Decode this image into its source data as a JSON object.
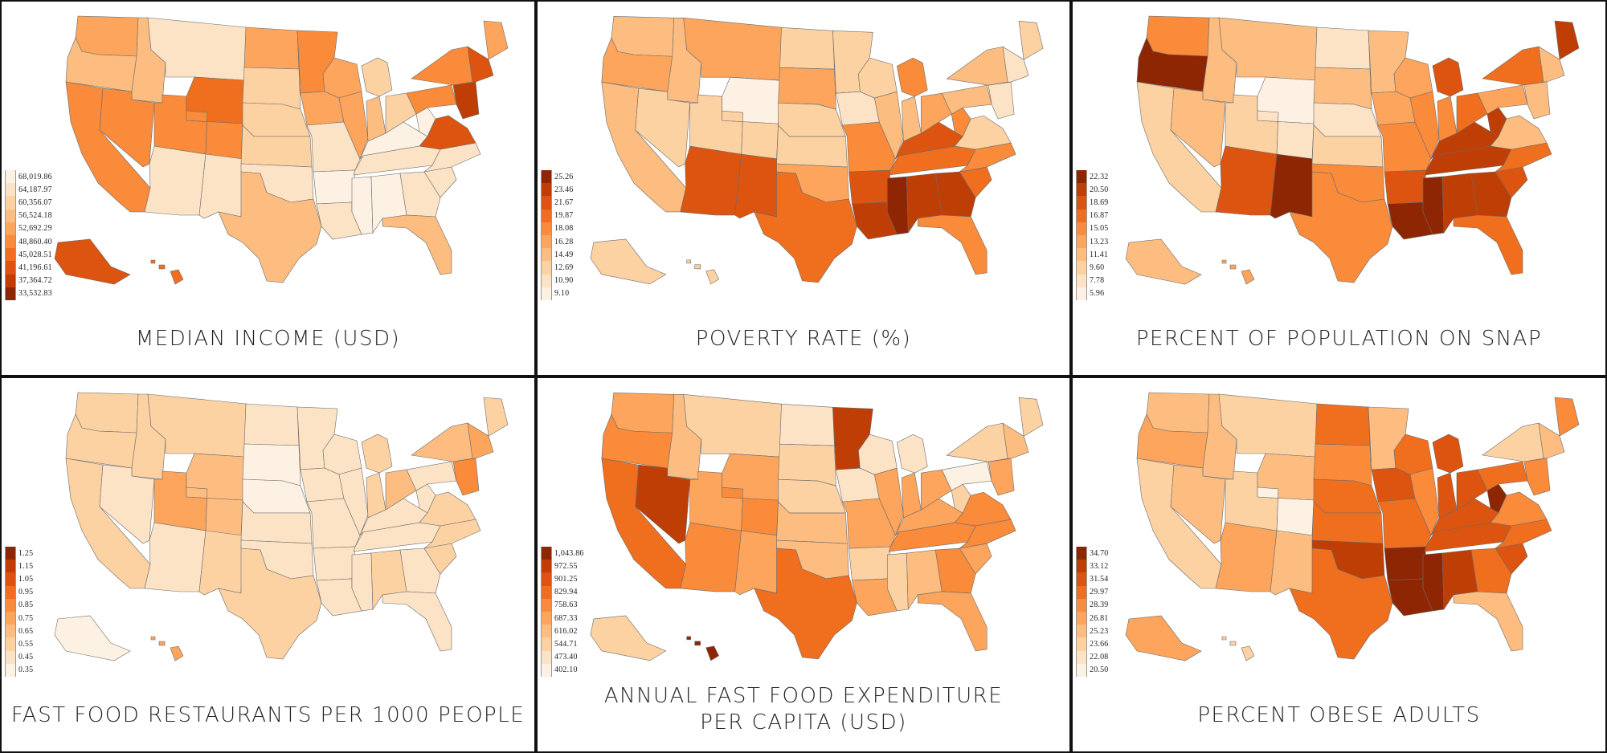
{
  "panels": [
    {
      "id": "median-income",
      "title_lines": [
        "MEDIAN INCOME (USD)"
      ],
      "legend": [
        "68,019.86",
        "64,187.97",
        "60,356.07",
        "56,524.18",
        "52,692.29",
        "48,860.40",
        "45,028.51",
        "41,196.61",
        "37,364.72",
        "33,532.83"
      ],
      "palette": [
        "#fdf1e3",
        "#fde3c5",
        "#fdd2a3",
        "#fdbd80",
        "#fda55c",
        "#f98b3b",
        "#ef6f1f",
        "#dc540f",
        "#bf3e06",
        "#8f2603"
      ],
      "states": {
        "WA": 4,
        "OR": 3,
        "CA": 5,
        "ID": 3,
        "NV": 5,
        "AZ": 1,
        "UT": 5,
        "MT": 1,
        "WY": 6,
        "CO": 5,
        "NM": 1,
        "ND": 4,
        "SD": 2,
        "NE": 2,
        "KS": 2,
        "OK": 1,
        "TX": 3,
        "MN": 5,
        "IA": 4,
        "MO": 1,
        "AR": 0,
        "LA": 1,
        "WI": 4,
        "IL": 4,
        "MS": 0,
        "MI": 2,
        "IN": 3,
        "KY": 0,
        "TN": 1,
        "AL": 0,
        "OH": 2,
        "GA": 1,
        "FL": 3,
        "SC": 1,
        "NC": 1,
        "WV": 0,
        "VA": 7,
        "PA": 5,
        "NY": 5,
        "ME": 4,
        "NE_": 7,
        "MID": 8,
        "AK": 7,
        "HI": 6
      }
    },
    {
      "id": "poverty-rate",
      "title_lines": [
        "POVERTY RATE (%)"
      ],
      "legend": [
        "25.26",
        "23.46",
        "21.67",
        "19.87",
        "18.08",
        "16.28",
        "14.49",
        "12.69",
        "10.90",
        "9.10"
      ],
      "palette": [
        "#8f2603",
        "#bf3e06",
        "#dc540f",
        "#ef6f1f",
        "#f98b3b",
        "#fda55c",
        "#fdbd80",
        "#fdd2a3",
        "#fde3c5",
        "#fdf1e3"
      ],
      "states": {
        "WA": 6,
        "OR": 5,
        "CA": 6,
        "ID": 6,
        "NV": 7,
        "AZ": 2,
        "UT": 7,
        "MT": 5,
        "WY": 9,
        "CO": 7,
        "NM": 2,
        "ND": 7,
        "SD": 5,
        "NE": 7,
        "KS": 7,
        "OK": 5,
        "TX": 3,
        "MN": 7,
        "IA": 8,
        "MO": 4,
        "AR": 2,
        "LA": 1,
        "WI": 7,
        "IL": 6,
        "MS": 0,
        "MI": 4,
        "IN": 6,
        "KY": 2,
        "TN": 3,
        "AL": 1,
        "OH": 5,
        "GA": 1,
        "FL": 4,
        "SC": 3,
        "NC": 4,
        "WV": 4,
        "VA": 7,
        "PA": 6,
        "NY": 6,
        "ME": 7,
        "NE_": 8,
        "MID": 8,
        "AK": 7,
        "HI": 7
      }
    },
    {
      "id": "snap",
      "title_lines": [
        "PERCENT OF POPULATION ON SNAP"
      ],
      "legend": [
        "22.32",
        "20.50",
        "18.69",
        "16.87",
        "15.05",
        "13.23",
        "11.41",
        "9.60",
        "7.78",
        "5.96"
      ],
      "palette": [
        "#8f2603",
        "#bf3e06",
        "#dc540f",
        "#ef6f1f",
        "#f98b3b",
        "#fda55c",
        "#fdbd80",
        "#fdd2a3",
        "#fde3c5",
        "#fdf1e3"
      ],
      "states": {
        "WA": 4,
        "OR": 0,
        "CA": 7,
        "ID": 6,
        "NV": 6,
        "AZ": 2,
        "UT": 7,
        "MT": 6,
        "WY": 9,
        "CO": 8,
        "NM": 0,
        "ND": 8,
        "SD": 6,
        "NE": 8,
        "KS": 7,
        "OK": 4,
        "TX": 4,
        "MN": 6,
        "IA": 5,
        "MO": 4,
        "AR": 2,
        "LA": 0,
        "WI": 5,
        "IL": 4,
        "MS": 0,
        "MI": 2,
        "IN": 4,
        "KY": 1,
        "TN": 1,
        "AL": 1,
        "OH": 3,
        "GA": 1,
        "FL": 3,
        "SC": 2,
        "NC": 3,
        "WV": 1,
        "VA": 6,
        "PA": 5,
        "NY": 3,
        "ME": 1,
        "NE_": 6,
        "MID": 6,
        "AK": 6,
        "HI": 5
      }
    },
    {
      "id": "fast-food-restaurants",
      "title_lines": [
        "FAST FOOD RESTAURANTS PER 1000 PEOPLE"
      ],
      "legend": [
        "1.25",
        "1.15",
        "1.05",
        "0.95",
        "0.85",
        "0.75",
        "0.65",
        "0.55",
        "0.45",
        "0.35"
      ],
      "palette": [
        "#8f2603",
        "#bf3e06",
        "#dc540f",
        "#ef6f1f",
        "#f98b3b",
        "#fda55c",
        "#fdbd80",
        "#fdd2a3",
        "#fde3c5",
        "#fdf1e3"
      ],
      "states": {
        "WA": 7,
        "OR": 7,
        "CA": 7,
        "ID": 7,
        "NV": 8,
        "AZ": 8,
        "UT": 5,
        "MT": 7,
        "WY": 6,
        "CO": 6,
        "NM": 7,
        "ND": 8,
        "SD": 9,
        "NE": 9,
        "KS": 8,
        "OK": 8,
        "TX": 7,
        "MN": 8,
        "IA": 8,
        "MO": 8,
        "AR": 8,
        "LA": 8,
        "WI": 8,
        "IL": 8,
        "MS": 8,
        "MI": 7,
        "IN": 7,
        "KY": 8,
        "TN": 8,
        "AL": 7,
        "OH": 6,
        "GA": 8,
        "FL": 8,
        "SC": 7,
        "NC": 7,
        "WV": 8,
        "VA": 7,
        "PA": 8,
        "NY": 6,
        "ME": 7,
        "NE_": 5,
        "MID": 4,
        "AK": 9,
        "HI": 5
      }
    },
    {
      "id": "fast-food-expenditure",
      "title_lines": [
        "ANNUAL FAST FOOD EXPENDITURE",
        "PER CAPITA (USD)"
      ],
      "legend": [
        "1,043.86",
        "972.55",
        "901.25",
        "829.94",
        "758.63",
        "687.33",
        "616.02",
        "544.71",
        "473.40",
        "402.10"
      ],
      "palette": [
        "#8f2603",
        "#bf3e06",
        "#dc540f",
        "#ef6f1f",
        "#f98b3b",
        "#fda55c",
        "#fdbd80",
        "#fdd2a3",
        "#fde3c5",
        "#fdf1e3"
      ],
      "states": {
        "WA": 5,
        "OR": 4,
        "CA": 3,
        "ID": 6,
        "NV": 1,
        "AZ": 4,
        "UT": 5,
        "MT": 7,
        "WY": 5,
        "CO": 4,
        "NM": 5,
        "ND": 8,
        "SD": 7,
        "NE": 7,
        "KS": 6,
        "OK": 6,
        "TX": 3,
        "MN": 1,
        "IA": 8,
        "MO": 5,
        "AR": 7,
        "LA": 5,
        "WI": 8,
        "IL": 5,
        "MS": 7,
        "MI": 8,
        "IN": 5,
        "KY": 5,
        "TN": 4,
        "AL": 6,
        "OH": 5,
        "GA": 4,
        "FL": 5,
        "SC": 5,
        "NC": 4,
        "WV": 7,
        "VA": 4,
        "PA": 9,
        "NY": 7,
        "ME": 7,
        "NE_": 6,
        "MID": 5,
        "AK": 7,
        "HI": 0
      }
    },
    {
      "id": "obese-adults",
      "title_lines": [
        "PERCENT OBESE ADULTS"
      ],
      "legend": [
        "34.70",
        "33.12",
        "31.54",
        "29.97",
        "28.39",
        "26.81",
        "25.23",
        "23.66",
        "22.08",
        "20.50"
      ],
      "palette": [
        "#8f2603",
        "#bf3e06",
        "#dc540f",
        "#ef6f1f",
        "#f98b3b",
        "#fda55c",
        "#fdbd80",
        "#fdd2a3",
        "#fde3c5",
        "#fdf1e3"
      ],
      "states": {
        "WA": 6,
        "OR": 5,
        "CA": 7,
        "ID": 6,
        "NV": 6,
        "AZ": 5,
        "UT": 7,
        "MT": 7,
        "WY": 6,
        "CO": 9,
        "NM": 6,
        "ND": 3,
        "SD": 4,
        "NE": 3,
        "KS": 3,
        "OK": 1,
        "TX": 3,
        "MN": 6,
        "IA": 2,
        "MO": 3,
        "AR": 0,
        "LA": 0,
        "WI": 3,
        "IL": 4,
        "MS": 0,
        "MI": 2,
        "IN": 2,
        "KY": 2,
        "TN": 2,
        "AL": 1,
        "OH": 2,
        "GA": 3,
        "FL": 6,
        "SC": 2,
        "NC": 3,
        "WV": 0,
        "VA": 4,
        "PA": 3,
        "NY": 7,
        "ME": 4,
        "NE_": 6,
        "MID": 4,
        "AK": 5,
        "HI": 7
      }
    }
  ]
}
